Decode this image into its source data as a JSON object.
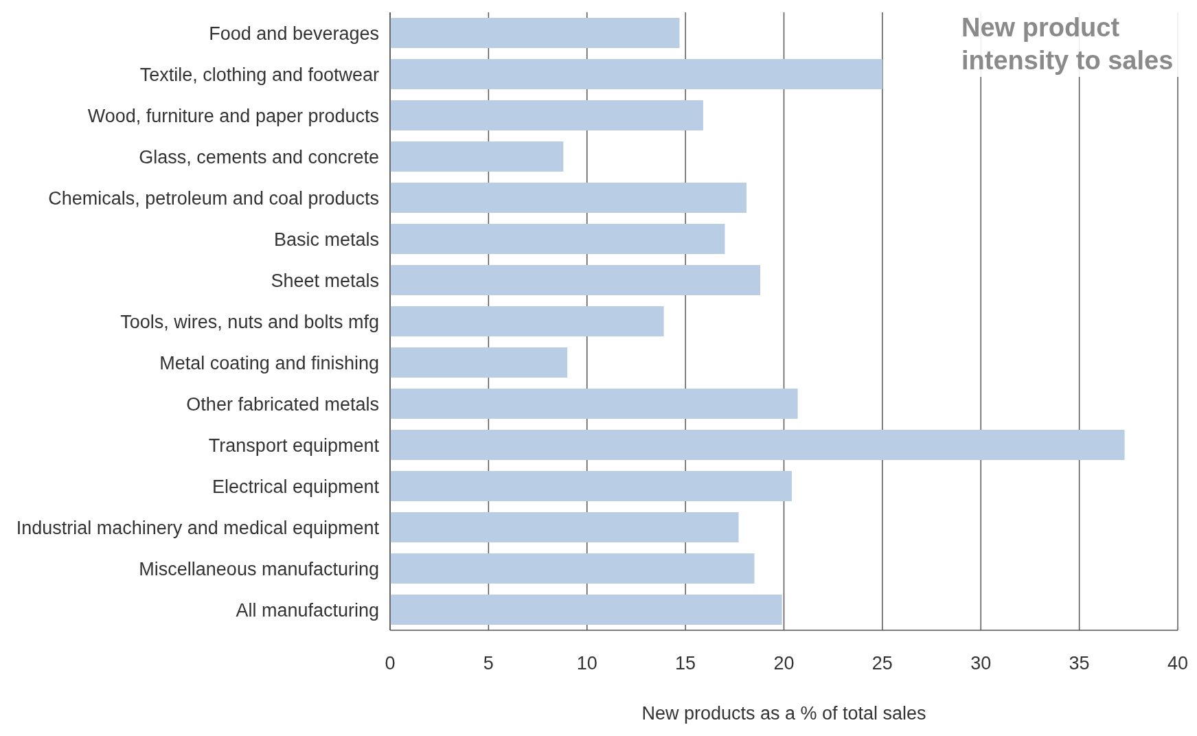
{
  "chart_data": {
    "type": "bar",
    "orientation": "horizontal",
    "title": "New product intensity to sales",
    "xlabel": "New products as a % of total sales",
    "categories": [
      "Food and beverages",
      "Textile, clothing and footwear",
      "Wood, furniture and paper products",
      "Glass, cements and concrete",
      "Chemicals, petroleum and coal products",
      "Basic metals",
      "Sheet metals",
      "Tools, wires, nuts and bolts mfg",
      "Metal coating and finishing",
      "Other fabricated metals",
      "Transport equipment",
      "Electrical equipment",
      "Industrial machinery and medical equipment",
      "Miscellaneous manufacturing",
      "All manufacturing"
    ],
    "values": [
      14.7,
      25.0,
      15.9,
      8.8,
      18.1,
      17.0,
      18.8,
      13.9,
      9.0,
      20.7,
      37.3,
      20.4,
      17.7,
      18.5,
      19.9
    ],
    "color": "#b9cde5",
    "xlim": [
      0,
      40
    ],
    "xticks": [
      0,
      5,
      10,
      15,
      20,
      25,
      30,
      35,
      40
    ],
    "grid": "x"
  }
}
